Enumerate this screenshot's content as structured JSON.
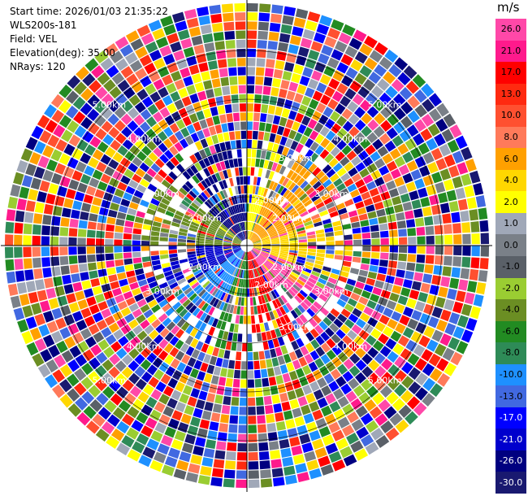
{
  "info": {
    "start_time": "Start time: 2026/01/03 21:35:22",
    "instrument": "WLS200s-181",
    "field": "Field: VEL",
    "elevation": "Elevation(deg): 35.00",
    "nrays": "NRays: 120"
  },
  "colorbar": {
    "unit": "m/s",
    "labels": [
      "26.0",
      "21.0",
      "17.0",
      "13.0",
      "10.0",
      "8.0",
      "6.0",
      "4.0",
      "2.0",
      "1.0",
      "0.0",
      "-1.0",
      "-2.0",
      "-4.0",
      "-6.0",
      "-8.0",
      "-10.0",
      "-13.0",
      "-17.0",
      "-21.0",
      "-26.0",
      "-30.0"
    ],
    "colors": [
      "#ff48a8",
      "#ff1a8c",
      "#ff0000",
      "#ff2a10",
      "#ff5030",
      "#ff7a5a",
      "#ffa000",
      "#ffd700",
      "#ffff00",
      "#a0a8b8",
      "#7a8088",
      "#5a6068",
      "#9acd32",
      "#6b8e23",
      "#228b22",
      "#2e8b57",
      "#1e90ff",
      "#4169e1",
      "#0000ff",
      "#0000cd",
      "#000080",
      "#191970"
    ]
  },
  "chart_data": {
    "type": "heatmap",
    "projection": "polar PPI",
    "field": "VEL",
    "nrays": 120,
    "range_rings_labels": [
      "2.00km",
      "2.00km",
      "2.00km",
      "2.00km",
      "2.00km",
      "2.00km",
      "3.00km",
      "3.00km",
      "3.00km",
      "3.00km",
      "3.00km",
      "3.00km",
      "4.00km",
      "4.00km",
      "4.00km",
      "4.00km",
      "5.00km",
      "5.00km",
      "5.00km",
      "5.00km"
    ],
    "color_scale_min": -30.0,
    "color_scale_max": 26.0
  }
}
